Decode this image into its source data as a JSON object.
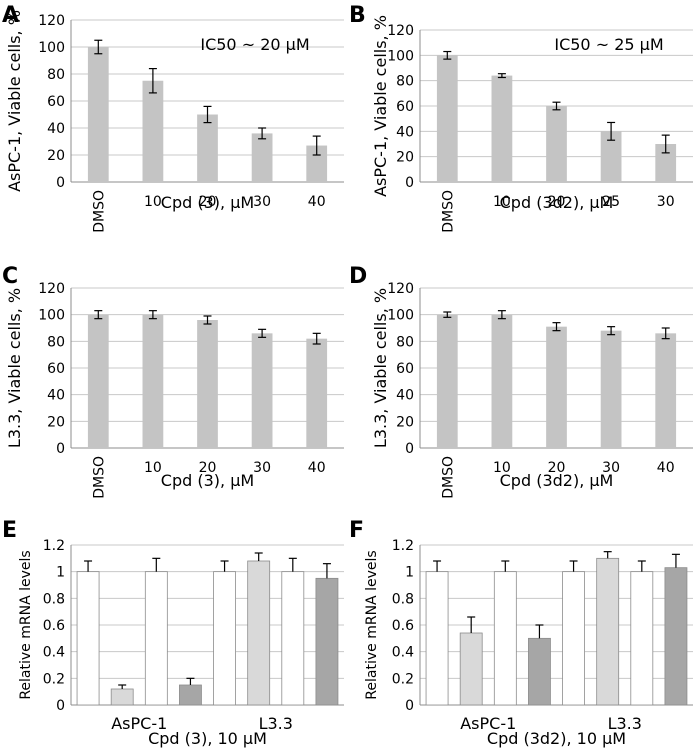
{
  "chart_data": [
    {
      "panel": "A",
      "type": "bar",
      "categories": [
        "DMSO",
        "10",
        "20",
        "30",
        "40"
      ],
      "values": [
        100,
        75,
        50,
        36,
        27
      ],
      "errors": [
        5,
        9,
        6,
        4,
        7
      ],
      "ylim": [
        0,
        120
      ],
      "yticks": [
        0,
        20,
        40,
        60,
        80,
        100,
        120
      ],
      "xlabel": "Cpd (3), μM",
      "ylabel": "AsPC-1, Viable cells, %",
      "annotation": "IC50 ~ 20 μM",
      "bar_color": "#c4c4c4"
    },
    {
      "panel": "B",
      "type": "bar",
      "categories": [
        "DMSO",
        "10",
        "20",
        "25",
        "30"
      ],
      "values": [
        100,
        84,
        60,
        40,
        30
      ],
      "errors": [
        3,
        1.5,
        3,
        7,
        7
      ],
      "ylim": [
        0,
        120
      ],
      "yticks": [
        0,
        20,
        40,
        60,
        80,
        100,
        120
      ],
      "xlabel": "Cpd (3d2), μM",
      "ylabel": "AsPC-1, Viable cells, %",
      "annotation": "IC50 ~ 25 μM",
      "bar_color": "#c4c4c4"
    },
    {
      "panel": "C",
      "type": "bar",
      "categories": [
        "DMSO",
        "10",
        "20",
        "30",
        "40"
      ],
      "values": [
        100,
        100,
        96,
        86,
        82
      ],
      "errors": [
        3,
        3,
        3,
        3,
        4
      ],
      "ylim": [
        0,
        120
      ],
      "yticks": [
        0,
        20,
        40,
        60,
        80,
        100,
        120
      ],
      "xlabel": "Cpd (3), μM",
      "ylabel": "L3.3, Viable cells, %",
      "annotation": "",
      "bar_color": "#c4c4c4"
    },
    {
      "panel": "D",
      "type": "bar",
      "categories": [
        "DMSO",
        "10",
        "20",
        "30",
        "40"
      ],
      "values": [
        100,
        100,
        91,
        88,
        86
      ],
      "errors": [
        2,
        3,
        3,
        3,
        4
      ],
      "ylim": [
        0,
        120
      ],
      "yticks": [
        0,
        20,
        40,
        60,
        80,
        100,
        120
      ],
      "xlabel": "Cpd (3d2), μM",
      "ylabel": "L3.3, Viable cells, %",
      "annotation": "",
      "bar_color": "#c4c4c4"
    },
    {
      "panel": "E",
      "type": "bar",
      "categories": [
        "AsPC-1",
        "L3.3"
      ],
      "series": [
        {
          "name": "s1",
          "values": [
            1.0,
            1.0
          ],
          "errors": [
            0.08,
            0.08
          ],
          "color": "#ffffff"
        },
        {
          "name": "s2",
          "values": [
            0.12,
            1.08
          ],
          "errors": [
            0.03,
            0.06
          ],
          "color": "#d9d9d9"
        },
        {
          "name": "s3",
          "values": [
            1.0,
            1.0
          ],
          "errors": [
            0.1,
            0.1
          ],
          "color": "#ffffff"
        },
        {
          "name": "s4",
          "values": [
            0.15,
            0.95
          ],
          "errors": [
            0.05,
            0.11
          ],
          "color": "#a6a6a6"
        }
      ],
      "ylim": [
        0,
        1.2
      ],
      "yticks": [
        "0",
        "0.2",
        "0.4",
        "0.6",
        "0.8",
        "1",
        "1.2"
      ],
      "xlabel": "Cpd (3), 10 μM",
      "ylabel": "Relative mRNA levels"
    },
    {
      "panel": "F",
      "type": "bar",
      "categories": [
        "AsPC-1",
        "L3.3"
      ],
      "series": [
        {
          "name": "s1",
          "values": [
            1.0,
            1.0
          ],
          "errors": [
            0.08,
            0.08
          ],
          "color": "#ffffff"
        },
        {
          "name": "s2",
          "values": [
            0.54,
            1.1
          ],
          "errors": [
            0.12,
            0.05
          ],
          "color": "#d9d9d9"
        },
        {
          "name": "s3",
          "values": [
            1.0,
            1.0
          ],
          "errors": [
            0.08,
            0.08
          ],
          "color": "#ffffff"
        },
        {
          "name": "s4",
          "values": [
            0.5,
            1.03
          ],
          "errors": [
            0.1,
            0.1
          ],
          "color": "#a6a6a6"
        }
      ],
      "ylim": [
        0,
        1.2
      ],
      "yticks": [
        "0",
        "0.2",
        "0.4",
        "0.6",
        "0.8",
        "1",
        "1.2"
      ],
      "xlabel": "Cpd (3d2), 10 μM",
      "ylabel": "Relative mRNA levels"
    }
  ]
}
